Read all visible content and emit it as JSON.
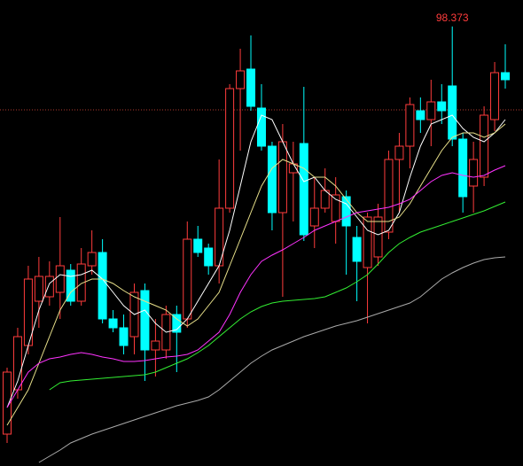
{
  "chart_data": {
    "type": "candlestick",
    "ylim": [
      88.45,
      98.97
    ],
    "up_color": "#ff3c3c",
    "down_color": "#00ffff",
    "background": "#000000",
    "reference_line": 96.49,
    "reference_color": "#b03a2e",
    "open": [
      89.17,
      90.17,
      91.17,
      92.17,
      92.27,
      92.37,
      92.87,
      92.17,
      92.97,
      93.27,
      91.77,
      91.57,
      91.37,
      92.41,
      91.07,
      91.07,
      91.87,
      91.77,
      93.57,
      93.37,
      92.97,
      94.27,
      96.97,
      97.41,
      96.53,
      95.67,
      94.17,
      95.07,
      95.73,
      93.87,
      94.27,
      93.97,
      94.53,
      93.61,
      92.93,
      93.17,
      93.73,
      95.37,
      95.67,
      96.47,
      96.27,
      96.67,
      97.03,
      95.83,
      94.77,
      94.97,
      96.27,
      97.33
    ],
    "high": [
      90.67,
      91.57,
      92.97,
      93.17,
      93.07,
      94.07,
      93.01,
      93.37,
      93.77,
      93.57,
      91.97,
      91.87,
      92.57,
      92.57,
      91.77,
      92.07,
      92.07,
      93.97,
      93.87,
      93.47,
      95.37,
      97.07,
      97.87,
      98.17,
      97.07,
      95.77,
      96.17,
      95.77,
      97.01,
      94.97,
      95.17,
      94.97,
      94.67,
      93.87,
      94.17,
      94.37,
      95.57,
      95.97,
      96.77,
      96.77,
      97.17,
      97.07,
      98.373,
      95.97,
      95.77,
      96.57,
      97.57,
      97.97
    ],
    "low": [
      88.97,
      89.97,
      90.97,
      91.57,
      92.07,
      91.77,
      92.07,
      92.07,
      92.77,
      91.67,
      91.47,
      90.97,
      90.97,
      90.37,
      90.47,
      90.87,
      90.57,
      91.57,
      93.17,
      92.77,
      92.57,
      94.17,
      95.57,
      96.47,
      95.57,
      93.77,
      92.27,
      93.97,
      93.53,
      93.37,
      94.17,
      93.47,
      92.77,
      92.17,
      91.67,
      92.97,
      93.57,
      94.17,
      95.17,
      95.97,
      95.67,
      96.17,
      95.67,
      94.17,
      94.17,
      94.77,
      96.01,
      96.97
    ],
    "close": [
      90.57,
      91.37,
      92.67,
      92.73,
      92.73,
      92.97,
      92.17,
      93.01,
      93.27,
      91.77,
      91.57,
      91.17,
      92.37,
      91.07,
      91.27,
      91.87,
      91.47,
      93.57,
      93.27,
      92.97,
      94.27,
      96.97,
      97.37,
      96.57,
      95.67,
      94.17,
      95.77,
      95.27,
      93.67,
      94.27,
      94.67,
      94.57,
      93.87,
      93.07,
      94.07,
      94.07,
      95.37,
      95.67,
      96.61,
      96.27,
      96.67,
      96.47,
      95.83,
      94.53,
      95.37,
      96.37,
      97.33,
      97.17
    ],
    "series": [
      {
        "color": "#ffffff",
        "values": [
          89.77,
          90.37,
          91.17,
          91.97,
          92.57,
          92.77,
          92.73,
          92.77,
          92.87,
          92.67,
          92.37,
          92.07,
          91.87,
          91.97,
          91.67,
          91.47,
          91.53,
          91.77,
          92.17,
          92.57,
          92.97,
          93.77,
          94.77,
          95.77,
          96.37,
          96.27,
          95.77,
          95.27,
          94.87,
          94.97,
          94.67,
          94.47,
          94.37,
          94.07,
          93.77,
          93.67,
          93.77,
          94.17,
          94.97,
          95.67,
          96.17,
          96.27,
          96.37,
          96.07,
          95.87,
          95.77,
          95.97,
          96.27
        ]
      },
      {
        "color": "#e8e08a",
        "values": [
          89.37,
          89.77,
          90.17,
          90.77,
          91.37,
          91.97,
          92.37,
          92.57,
          92.67,
          92.67,
          92.57,
          92.41,
          92.27,
          92.17,
          92.07,
          91.97,
          91.77,
          91.61,
          91.77,
          92.07,
          92.37,
          92.97,
          93.57,
          94.17,
          94.77,
          95.17,
          95.37,
          95.27,
          95.17,
          94.97,
          94.97,
          94.77,
          94.47,
          94.17,
          93.97,
          93.97,
          93.97,
          94.07,
          94.37,
          94.77,
          95.17,
          95.57,
          95.87,
          95.97,
          95.97,
          95.87,
          95.97,
          96.17
        ]
      },
      {
        "color": "#ff33ff",
        "values": [
          89.77,
          90.17,
          90.57,
          90.77,
          90.87,
          90.91,
          90.97,
          91.01,
          90.97,
          90.91,
          90.87,
          90.81,
          90.81,
          90.83,
          90.87,
          90.91,
          90.93,
          90.97,
          91.07,
          91.27,
          91.47,
          91.87,
          92.37,
          92.77,
          93.07,
          93.21,
          93.33,
          93.47,
          93.61,
          93.77,
          93.87,
          93.97,
          94.07,
          94.17,
          94.21,
          94.25,
          94.29,
          94.37,
          94.47,
          94.67,
          94.87,
          95.01,
          95.07,
          95.01,
          94.97,
          95.01,
          95.13,
          95.23
        ]
      },
      {
        "color": "#33ee33",
        "values": [
          null,
          null,
          null,
          null,
          90.17,
          90.33,
          90.37,
          90.39,
          90.41,
          90.43,
          90.45,
          90.47,
          90.49,
          90.51,
          90.57,
          90.67,
          90.77,
          90.87,
          91.01,
          91.17,
          91.37,
          91.57,
          91.77,
          91.93,
          92.05,
          92.13,
          92.17,
          92.19,
          92.21,
          92.23,
          92.27,
          92.37,
          92.47,
          92.61,
          92.77,
          93.01,
          93.27,
          93.47,
          93.61,
          93.73,
          93.81,
          93.89,
          93.97,
          94.05,
          94.13,
          94.21,
          94.31,
          94.41
        ]
      },
      {
        "color": "#aaaaaa",
        "values": [
          null,
          null,
          null,
          88.53,
          88.67,
          88.81,
          88.97,
          89.07,
          89.17,
          89.25,
          89.33,
          89.41,
          89.49,
          89.57,
          89.65,
          89.73,
          89.81,
          89.87,
          89.93,
          90.01,
          90.17,
          90.37,
          90.57,
          90.77,
          90.93,
          91.07,
          91.17,
          91.27,
          91.37,
          91.45,
          91.53,
          91.61,
          91.67,
          91.73,
          91.81,
          91.89,
          91.97,
          92.05,
          92.13,
          92.27,
          92.47,
          92.67,
          92.81,
          92.93,
          93.03,
          93.11,
          93.15,
          93.17
        ]
      }
    ]
  }
}
